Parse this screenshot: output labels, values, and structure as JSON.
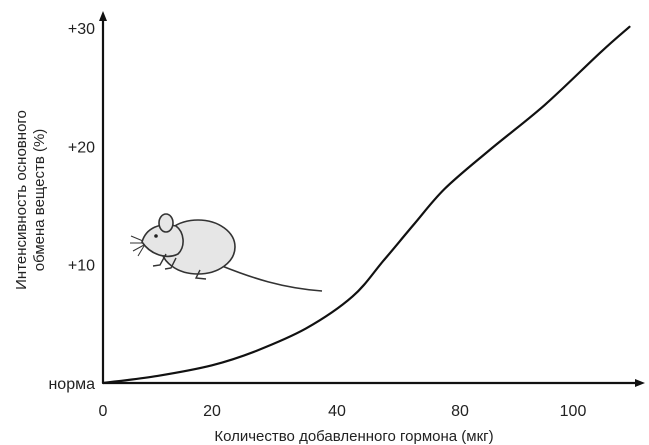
{
  "chart_data": {
    "type": "line",
    "title": "",
    "xlabel": "Количество добавленного гормона (мкг)",
    "ylabel_line1": "Интенсивность основного",
    "ylabel_line2": "обмена веществ (%)",
    "x_ticks": [
      {
        "value": 0,
        "label": "0"
      },
      {
        "value": 20,
        "label": "20"
      },
      {
        "value": 40,
        "label": "40"
      },
      {
        "value": 80,
        "label": "80"
      },
      {
        "value": 100,
        "label": "100"
      }
    ],
    "y_ticks": [
      {
        "value": 0,
        "label": "норма"
      },
      {
        "value": 10,
        "label": "+10"
      },
      {
        "value": 20,
        "label": "+20"
      },
      {
        "value": 30,
        "label": "+30"
      }
    ],
    "ylim": [
      0,
      30
    ],
    "grid": false,
    "illustration": "mouse",
    "colors": {
      "axis": "#111111",
      "line": "#111111",
      "mouse_fill": "#e6e6e6"
    },
    "series": [
      {
        "x": [
          0,
          10,
          20,
          27,
          35,
          45,
          55,
          65,
          75,
          85,
          95,
          105,
          110
        ],
        "y": [
          0,
          0.6,
          1.5,
          2.7,
          4.6,
          7.3,
          10.3,
          13.4,
          16.4,
          19.6,
          23.5,
          28.0,
          30.1
        ]
      }
    ]
  }
}
